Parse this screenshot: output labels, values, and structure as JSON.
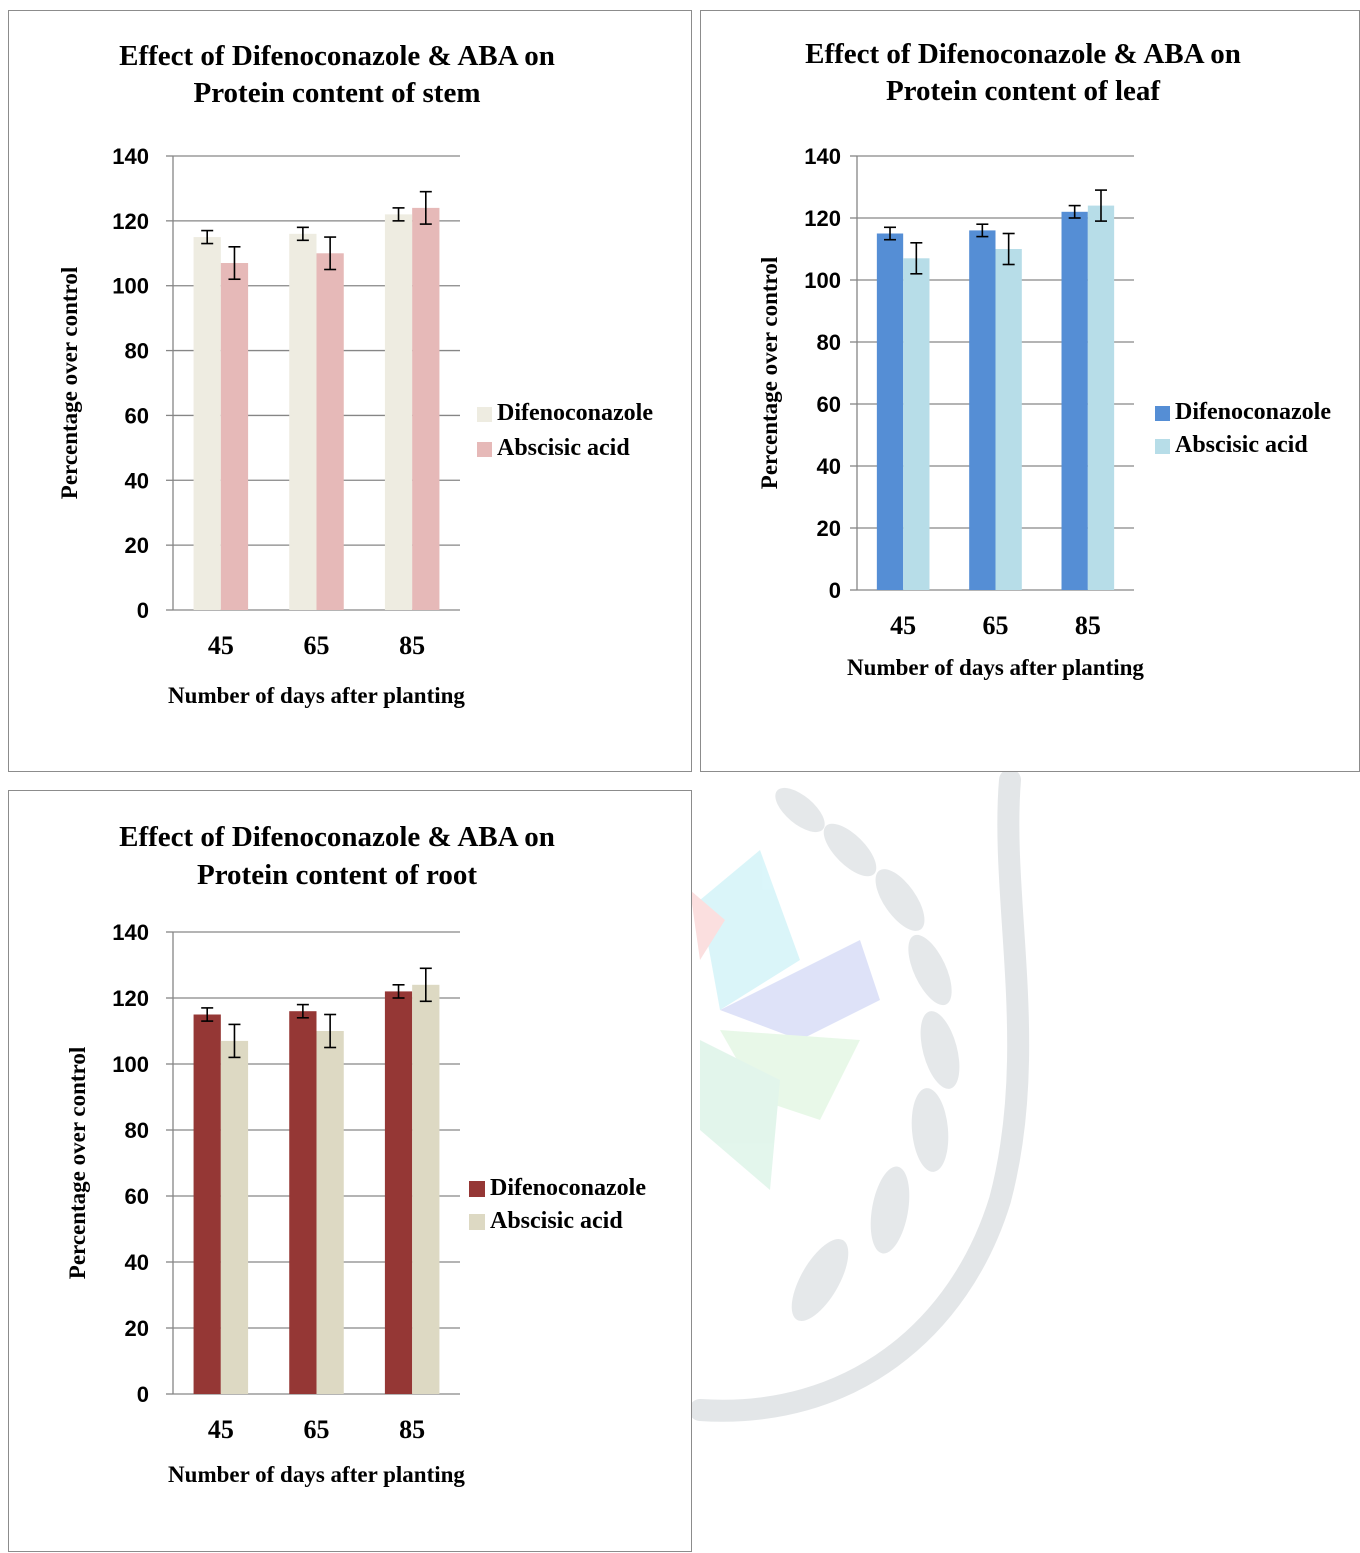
{
  "chart_data": [
    {
      "type": "bar",
      "title": [
        "Effect of Difenoconazole & ABA on",
        "Protein content of stem"
      ],
      "xlabel": "Number of days after planting",
      "ylabel": "Percentage over control",
      "categories": [
        "45",
        "65",
        "85"
      ],
      "ylim": [
        0,
        140
      ],
      "yticks": [
        "0",
        "20",
        "40",
        "60",
        "80",
        "100",
        "120",
        "140"
      ],
      "grid": true,
      "legend": "right",
      "series": [
        {
          "name": "Difenoconazole",
          "values": [
            115,
            116,
            122
          ],
          "errors": [
            2,
            2,
            2
          ],
          "color": "#eeece1"
        },
        {
          "name": "Abscisic acid",
          "values": [
            107,
            110,
            124
          ],
          "errors": [
            5,
            5,
            5
          ],
          "color": "#e6b9b8"
        }
      ]
    },
    {
      "type": "bar",
      "title": [
        "Effect of Difenoconazole & ABA on",
        "Protein content of leaf"
      ],
      "xlabel": "Number of days after planting",
      "ylabel": "Percentage over control",
      "categories": [
        "45",
        "65",
        "85"
      ],
      "ylim": [
        0,
        140
      ],
      "yticks": [
        "0",
        "20",
        "40",
        "60",
        "80",
        "100",
        "120",
        "140"
      ],
      "grid": true,
      "legend": "right",
      "series": [
        {
          "name": "Difenoconazole",
          "values": [
            115,
            116,
            122
          ],
          "errors": [
            2,
            2,
            2
          ],
          "color": "#558ed5"
        },
        {
          "name": "Abscisic acid",
          "values": [
            107,
            110,
            124
          ],
          "errors": [
            5,
            5,
            5
          ],
          "color": "#b7dde8"
        }
      ]
    },
    {
      "type": "bar",
      "title": [
        "Effect of Difenoconazole & ABA on",
        "Protein content of root"
      ],
      "xlabel": "Number of days after planting",
      "ylabel": "Percentage over control",
      "categories": [
        "45",
        "65",
        "85"
      ],
      "ylim": [
        0,
        140
      ],
      "yticks": [
        "0",
        "20",
        "40",
        "60",
        "80",
        "100",
        "120",
        "140"
      ],
      "grid": true,
      "legend": "right",
      "series": [
        {
          "name": "Difenoconazole",
          "values": [
            115,
            116,
            122
          ],
          "errors": [
            2,
            2,
            2
          ],
          "color": "#953735"
        },
        {
          "name": "Abscisic acid",
          "values": [
            107,
            110,
            124
          ],
          "errors": [
            5,
            5,
            5
          ],
          "color": "#ddd9c3"
        }
      ]
    }
  ]
}
